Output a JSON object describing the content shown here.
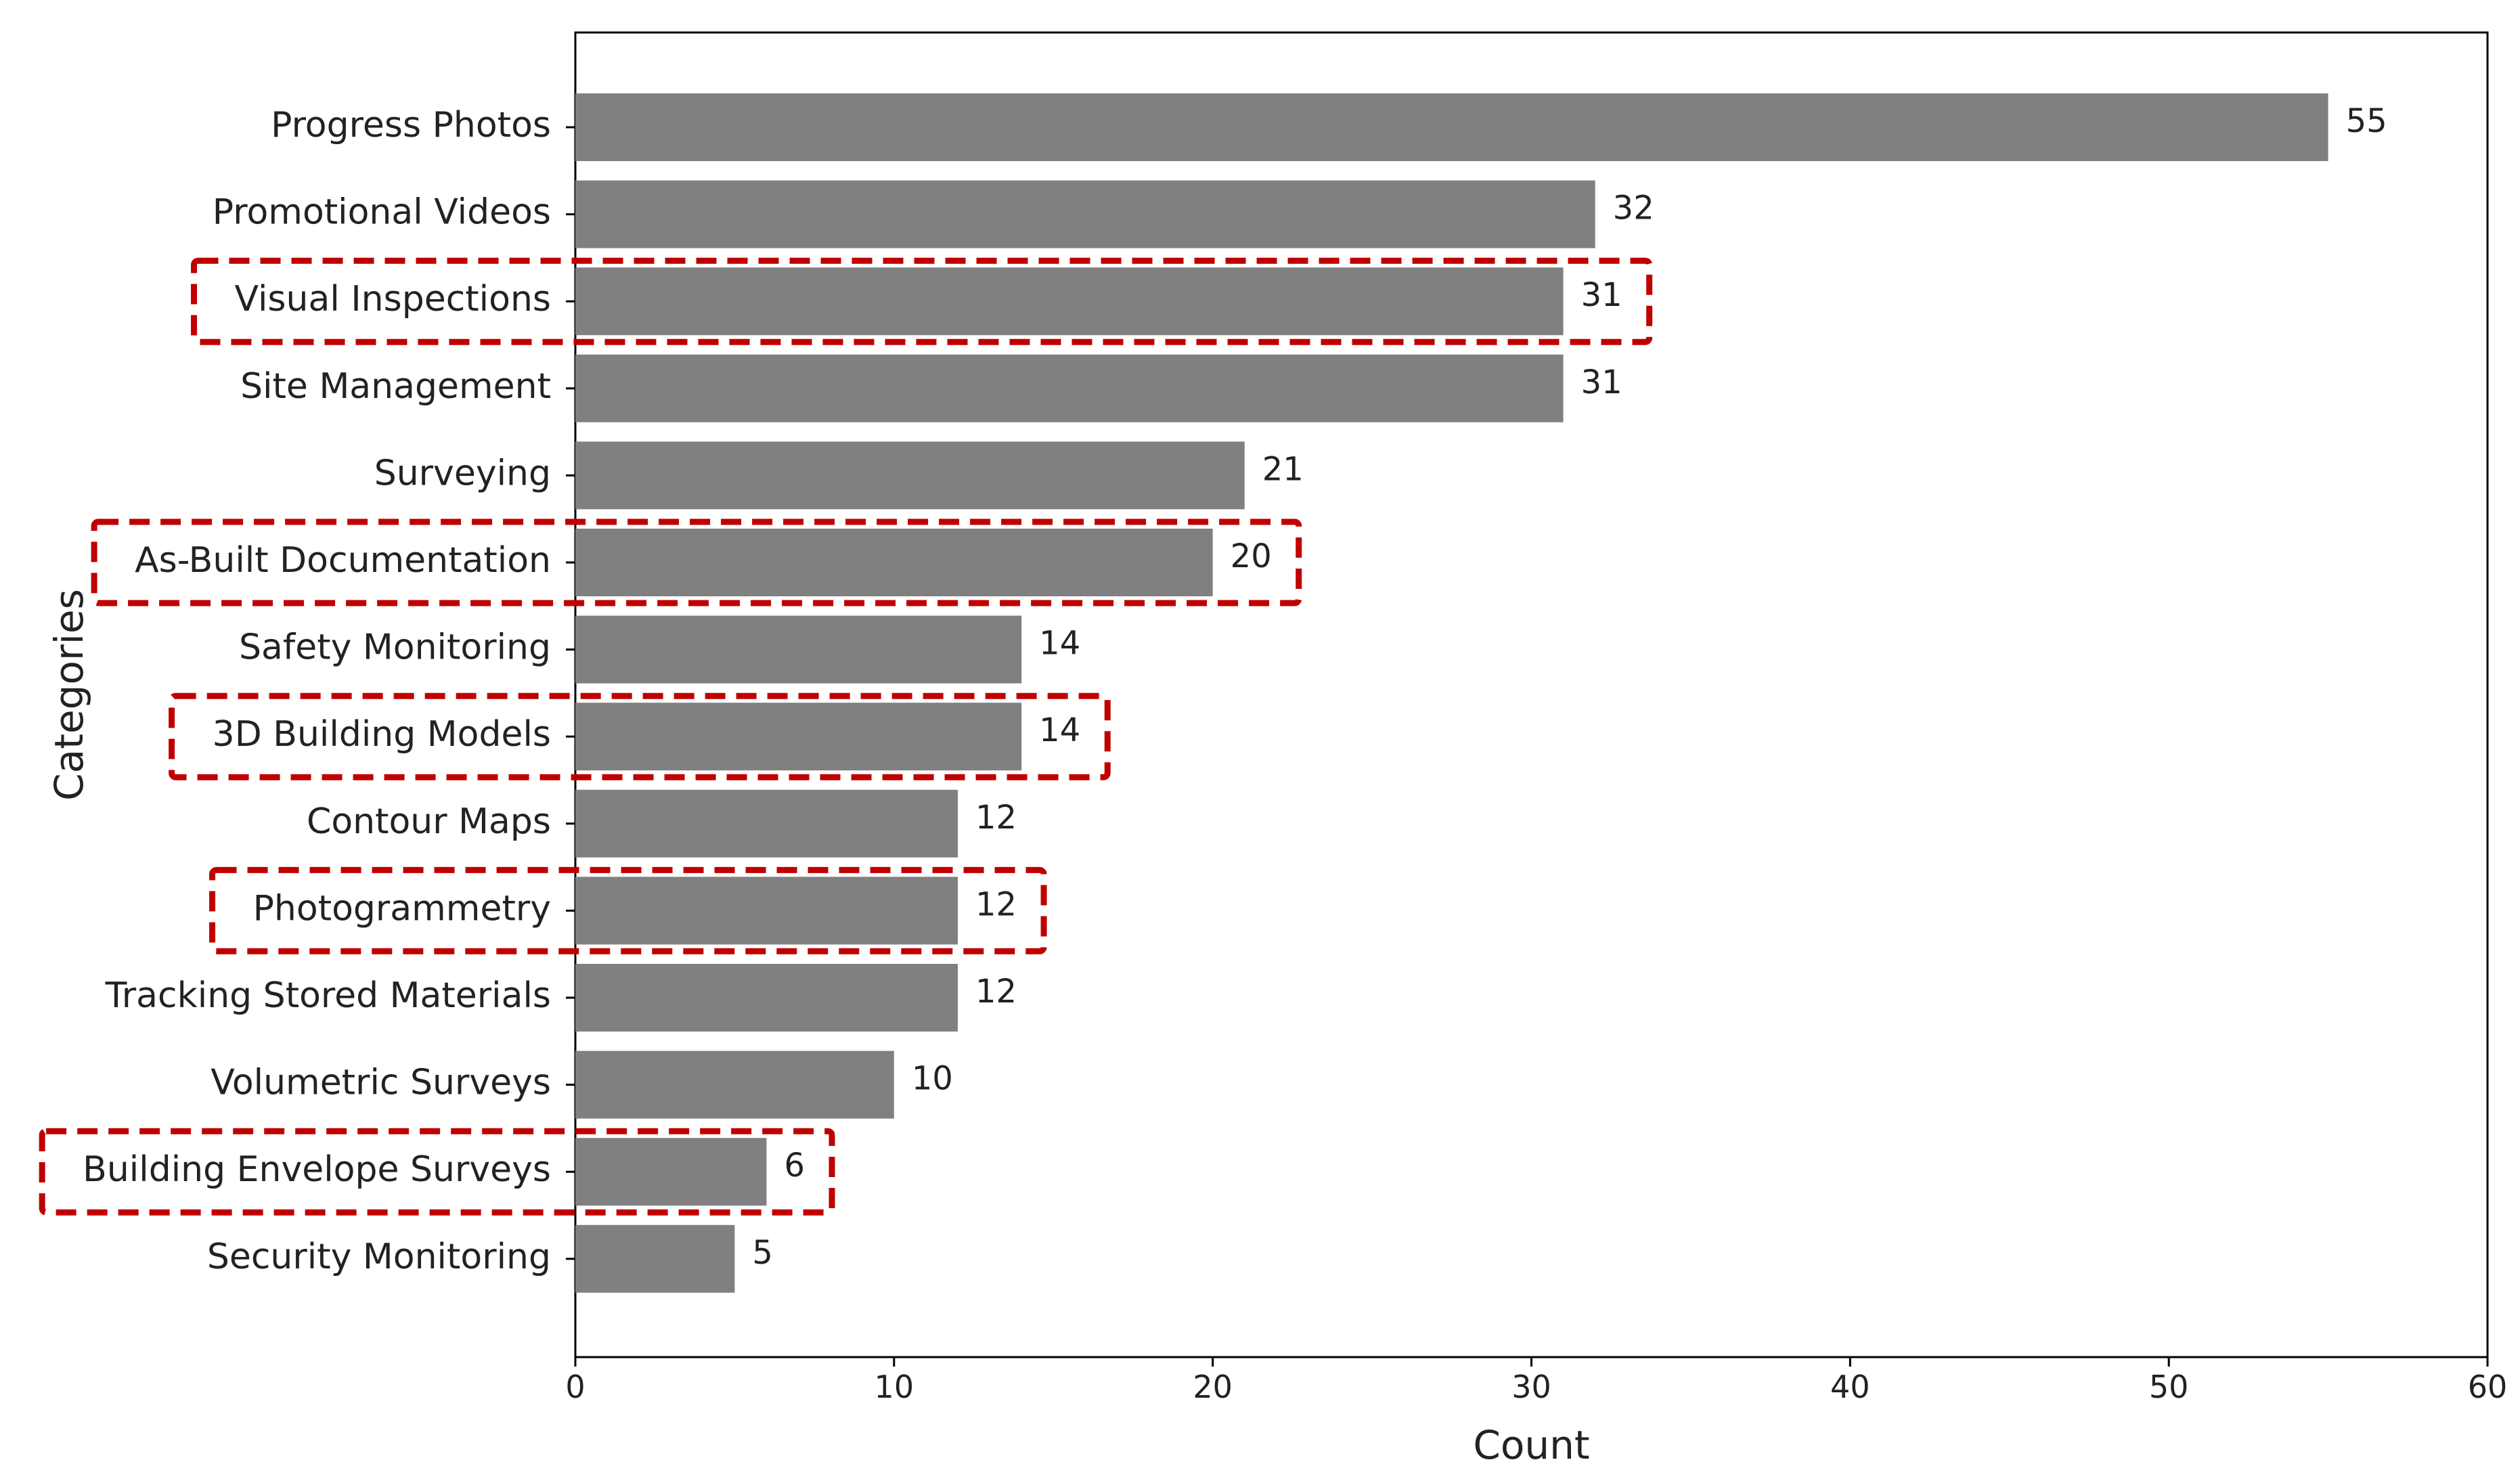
{
  "chart_data": {
    "type": "bar",
    "orientation": "horizontal",
    "xlabel": "Count",
    "ylabel": "Categories",
    "xlim": [
      0,
      60
    ],
    "xticks": [
      0,
      10,
      20,
      30,
      40,
      50,
      60
    ],
    "bar_color": "#808080",
    "highlight_color": "#c00000",
    "grid": false,
    "categories": [
      "Progress Photos",
      "Promotional Videos",
      "Visual Inspections",
      "Site Management",
      "Surveying",
      "As-Built Documentation",
      "Safety Monitoring",
      "3D Building Models",
      "Contour Maps",
      "Photogrammetry",
      "Tracking Stored Materials",
      "Volumetric Surveys",
      "Building Envelope Surveys",
      "Security Monitoring"
    ],
    "values": [
      55,
      32,
      31,
      31,
      21,
      20,
      14,
      14,
      12,
      12,
      12,
      10,
      6,
      5
    ],
    "highlighted": [
      "Visual Inspections",
      "As-Built Documentation",
      "3D Building Models",
      "Photogrammetry",
      "Building Envelope Surveys"
    ]
  }
}
